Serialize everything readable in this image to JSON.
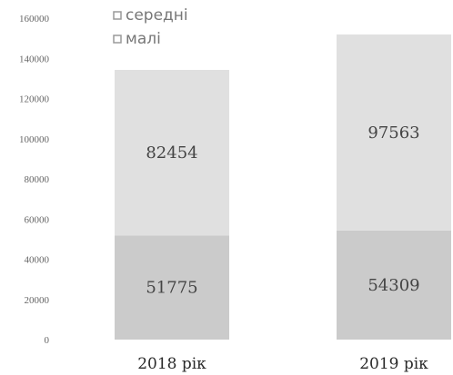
{
  "chart_data": {
    "type": "bar",
    "stacked": true,
    "categories": [
      "2018 рік",
      "2019 рік"
    ],
    "series": [
      {
        "name": "малі",
        "values": [
          51775,
          54309
        ],
        "color": "#cbcbcb"
      },
      {
        "name": "середні",
        "values": [
          82454,
          97563
        ],
        "color": "#e0e0e0"
      }
    ],
    "yticks": [
      "0",
      "20000",
      "40000",
      "60000",
      "80000",
      "100000",
      "120000",
      "140000",
      "160000"
    ],
    "ylim": [
      0,
      160000
    ],
    "grid": false,
    "legend_position": "top-left",
    "legend_order": [
      "середні",
      "малі"
    ],
    "legend_marker_color": "#9a9a9a"
  }
}
